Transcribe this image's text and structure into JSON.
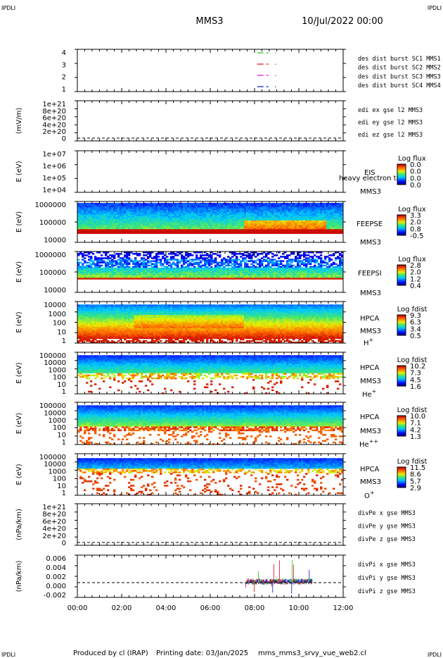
{
  "corner_labels": {
    "top_left": "IPDLI",
    "top_right": "IPDLI",
    "bottom_left": "IPDLI",
    "bottom_right": "IPDLI"
  },
  "header": {
    "spacecraft": "MMS3",
    "date": "10/Jul/2022 00:00"
  },
  "footer": {
    "produced_by": "Produced by cl (IRAP)",
    "printing_date": "Printing date: 03/Jan/2025",
    "script_name": "mms_mms3_srvy_vue_web2.cl"
  },
  "x_axis": {
    "ticks": [
      "00:00",
      "02:00",
      "04:00",
      "06:00",
      "08:00",
      "10:00",
      "12:00"
    ],
    "range_hours": [
      0,
      12
    ]
  },
  "colors": {
    "red": "#e8001c",
    "green": "#16c816",
    "blue": "#0016c8",
    "magenta": "#e000e0"
  },
  "chart_data": [
    {
      "type": "line",
      "name": "burst",
      "ylabel": "",
      "yticks": [
        "4",
        "3",
        "2",
        "1"
      ],
      "ylim": [
        0.5,
        4.5
      ],
      "legend": [
        {
          "text": "des dist burst SC1 MMS1",
          "color": "#0016c8"
        },
        {
          "text": "des dist burst SC2 MMS2",
          "color": "#e000e0"
        },
        {
          "text": "des dist burst SC3 MMS3",
          "color": "#e8001c"
        },
        {
          "text": "des dist burst SC4 MMS4",
          "color": "#16c816"
        }
      ],
      "series": [
        {
          "name": "SC4",
          "y": 4,
          "start_hour": 8.5,
          "end_hour": 8.9,
          "color": "#16c816"
        },
        {
          "name": "SC3",
          "y": 3,
          "start_hour": 8.5,
          "end_hour": 8.9,
          "color": "#e8001c"
        },
        {
          "name": "SC2",
          "y": 2,
          "start_hour": 8.5,
          "end_hour": 8.9,
          "color": "#e000e0"
        },
        {
          "name": "SC1",
          "y": 1,
          "start_hour": 8.5,
          "end_hour": 8.9,
          "color": "#0016c8"
        }
      ]
    },
    {
      "type": "line",
      "name": "edi",
      "ylabel": "(mV/m)",
      "yticks": [
        "1e+21",
        "8e+20",
        "6e+20",
        "4e+20",
        "2e+20",
        "0"
      ],
      "legend": [
        {
          "text": "edi ex gse l2 MMS3",
          "color": "#e8001c"
        },
        {
          "text": "edi ey gse l2 MMS3",
          "color": "#16c816"
        },
        {
          "text": "edi ez gse l2 MMS3",
          "color": "#0016c8"
        }
      ]
    },
    {
      "type": "heatmap",
      "name": "eis",
      "ylabel": "E (eV)",
      "yticks": [
        "1e+07",
        "1e+06",
        "1e+05",
        "1e+04"
      ],
      "labels": [
        "EIS",
        "heavy electron to",
        "MMS3"
      ],
      "colorbar": {
        "title": "Log flux",
        "values": [
          "0.0",
          "0.0",
          "0.0",
          "0.0"
        ]
      }
    },
    {
      "type": "heatmap",
      "name": "feepse",
      "ylabel": "E (eV)",
      "yticks": [
        "1000000",
        "100000",
        "10000"
      ],
      "labels": [
        "FEEPSE",
        "MMS3"
      ],
      "colorbar": {
        "title": "Log flux",
        "values": [
          "3.3",
          "2.0",
          "0.8",
          "-0.5"
        ]
      }
    },
    {
      "type": "heatmap",
      "name": "feepsi",
      "ylabel": "E (eV)",
      "yticks": [
        "1000000",
        "100000",
        "10000"
      ],
      "labels": [
        "FEEPSI",
        "MMS3"
      ],
      "colorbar": {
        "title": "Log flux",
        "values": [
          "2.8",
          "2.0",
          "1.2",
          "0.4"
        ]
      }
    },
    {
      "type": "heatmap",
      "name": "hpca-h",
      "ylabel": "E (eV)",
      "yticks": [
        "10000",
        "1000",
        "100",
        "10",
        "1"
      ],
      "labels": [
        "HPCA",
        "MMS3",
        "H+"
      ],
      "colorbar": {
        "title": "Log fdist",
        "values": [
          "9.3",
          "6.3",
          "3.4",
          "0.5"
        ]
      }
    },
    {
      "type": "heatmap",
      "name": "hpca-he",
      "ylabel": "E (eV)",
      "yticks": [
        "100000",
        "10000",
        "1000",
        "100",
        "10",
        "1"
      ],
      "labels": [
        "HPCA",
        "MMS3",
        "He+"
      ],
      "colorbar": {
        "title": "Log fdist",
        "values": [
          "10.2",
          "7.3",
          "4.5",
          "1.6"
        ]
      }
    },
    {
      "type": "heatmap",
      "name": "hpca-hepp",
      "ylabel": "E (eV)",
      "yticks": [
        "100000",
        "10000",
        "1000",
        "100",
        "10",
        "1"
      ],
      "labels": [
        "HPCA",
        "MMS3",
        "He++"
      ],
      "colorbar": {
        "title": "Log fdist",
        "values": [
          "10.0",
          "7.1",
          "4.2",
          "1.3"
        ]
      }
    },
    {
      "type": "heatmap",
      "name": "hpca-o",
      "ylabel": "E (eV)",
      "yticks": [
        "100000",
        "10000",
        "1000",
        "100",
        "10",
        "1"
      ],
      "labels": [
        "HPCA",
        "MMS3",
        "O+"
      ],
      "colorbar": {
        "title": "Log fdist",
        "values": [
          "11.5",
          "8.6",
          "5.7",
          "2.9"
        ]
      }
    },
    {
      "type": "line",
      "name": "divpe",
      "ylabel": "(nPa/km)",
      "yticks": [
        "1e+21",
        "8e+20",
        "6e+20",
        "4e+20",
        "2e+20",
        "0"
      ],
      "legend": [
        {
          "text": "divPe x gse MMS3",
          "color": "#e8001c"
        },
        {
          "text": "divPe y gse MMS3",
          "color": "#16c816"
        },
        {
          "text": "divPe z gse MMS3",
          "color": "#0016c8"
        }
      ]
    },
    {
      "type": "line",
      "name": "divpi",
      "ylabel": "(nPa/km)",
      "yticks": [
        "0.006",
        "0.004",
        "0.002",
        "0.000",
        "-0.002"
      ],
      "ylim": [
        -0.003,
        0.007
      ],
      "data_hours": [
        7.6,
        10.6
      ],
      "legend": [
        {
          "text": "divPi x gse MMS3",
          "color": "#e8001c"
        },
        {
          "text": "divPi y gse MMS3",
          "color": "#16c816"
        },
        {
          "text": "divPi z gse MMS3",
          "color": "#0016c8"
        }
      ]
    }
  ]
}
